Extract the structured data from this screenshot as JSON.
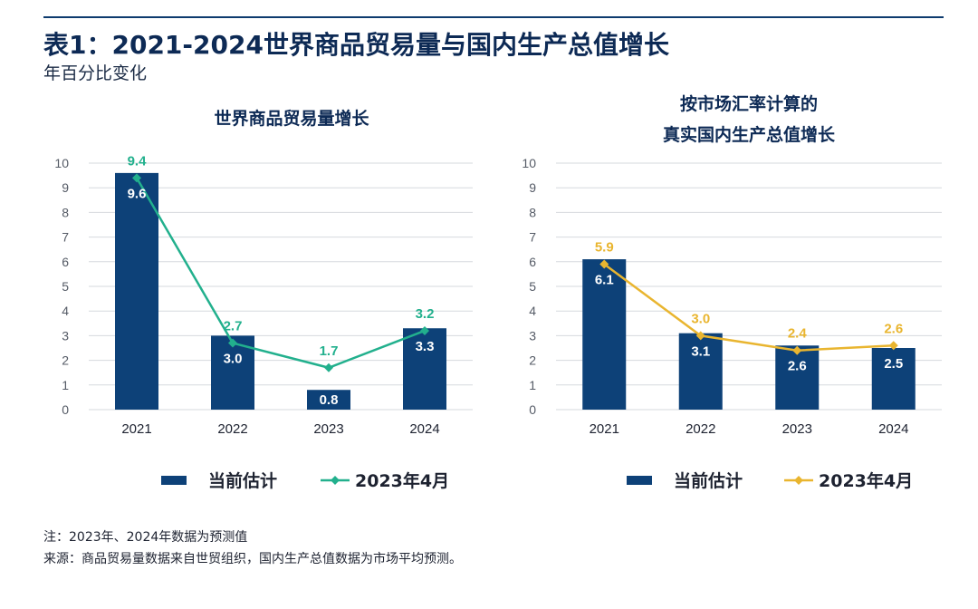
{
  "title": "表1：2021-2024世界商品贸易量与国内生产总值增长",
  "subtitle": "年百分比变化",
  "colors": {
    "bar": "#0d4178",
    "trade_line": "#22b08d",
    "gdp_line": "#e9b52f",
    "grid": "#d6d9de"
  },
  "chart_data": [
    {
      "type": "bar",
      "title_lines": [
        "世界商品贸易量增长"
      ],
      "categories": [
        "2021",
        "2022",
        "2023",
        "2024"
      ],
      "ylim": [
        0,
        10
      ],
      "yticks": [
        "0",
        "1",
        "2",
        "3",
        "4",
        "5",
        "6",
        "7",
        "8",
        "9",
        "10"
      ],
      "series": [
        {
          "name": "当前估计",
          "type": "bar",
          "values": [
            9.6,
            3.0,
            0.8,
            3.3
          ],
          "labels": [
            "9.6",
            "3.0",
            "0.8",
            "3.3"
          ]
        },
        {
          "name": "2023年4月",
          "type": "line",
          "values": [
            9.4,
            2.7,
            1.7,
            3.2
          ],
          "labels": [
            "9.4",
            "2.7",
            "1.7",
            "3.2"
          ]
        }
      ],
      "grid": true,
      "legend": "bottom"
    },
    {
      "type": "bar",
      "title_lines": [
        "按市场汇率计算的",
        "真实国内生产总值增长"
      ],
      "categories": [
        "2021",
        "2022",
        "2023",
        "2024"
      ],
      "ylim": [
        0,
        10
      ],
      "yticks": [
        "0",
        "1",
        "2",
        "3",
        "4",
        "5",
        "6",
        "7",
        "8",
        "9",
        "10"
      ],
      "series": [
        {
          "name": "当前估计",
          "type": "bar",
          "values": [
            6.1,
            3.1,
            2.6,
            2.5
          ],
          "labels": [
            "6.1",
            "3.1",
            "2.6",
            "2.5"
          ]
        },
        {
          "name": "2023年4月",
          "type": "line",
          "values": [
            5.9,
            3.0,
            2.4,
            2.6
          ],
          "labels": [
            "5.9",
            "3.0",
            "2.4",
            "2.6"
          ]
        }
      ],
      "grid": true,
      "legend": "bottom"
    }
  ],
  "notes": {
    "note": "注：2023年、2024年数据为预测值",
    "source": "来源：商品贸易量数据来自世贸组织，国内生产总值数据为市场平均预测。"
  }
}
